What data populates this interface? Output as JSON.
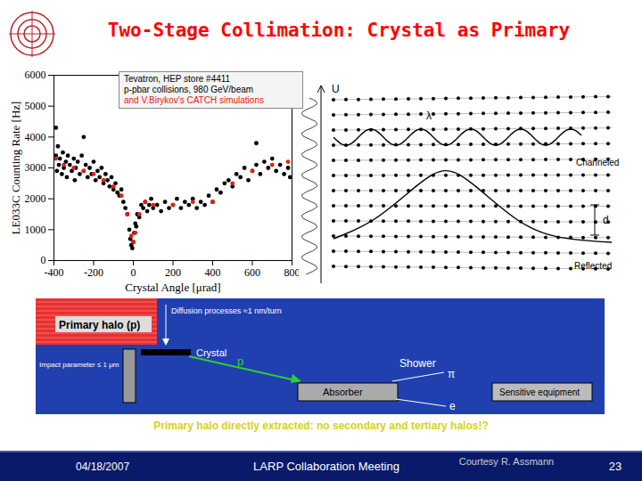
{
  "header": {
    "title": "Two-Stage Collimation: Crystal as Primary"
  },
  "chart_data": {
    "type": "scatter",
    "xlabel": "Crystal Angle [μrad]",
    "ylabel": "LE033C Counting Rate [Hz]",
    "annotations": [
      {
        "text": "Tevatron, HEP store #4411",
        "color": "#000000"
      },
      {
        "text": "p-pbar collisions, 980 GeV/beam",
        "color": "#000000"
      },
      {
        "text": "and V.Birykov's CATCH simulations",
        "color": "#e02010"
      }
    ],
    "series": [
      {
        "color": "#000000",
        "marker": "circle",
        "x": [
          -390,
          -390,
          -385,
          -380,
          -375,
          -370,
          -360,
          -355,
          -350,
          -340,
          -335,
          -330,
          -320,
          -310,
          -300,
          -295,
          -290,
          -280,
          -270,
          -260,
          -250,
          -250,
          -240,
          -230,
          -220,
          -210,
          -200,
          -190,
          -180,
          -170,
          -160,
          -150,
          -140,
          -130,
          -120,
          -110,
          -100,
          -90,
          -80,
          -70,
          -60,
          -50,
          -40,
          -30,
          -20,
          -15,
          -10,
          -5,
          0,
          5,
          10,
          15,
          20,
          30,
          40,
          50,
          60,
          70,
          80,
          90,
          100,
          120,
          140,
          160,
          180,
          200,
          220,
          240,
          260,
          280,
          300,
          320,
          340,
          360,
          380,
          400,
          420,
          440,
          460,
          480,
          500,
          520,
          540,
          560,
          580,
          600,
          620,
          620,
          640,
          660,
          680,
          700,
          720,
          740,
          760,
          780,
          790
        ],
        "y": [
          3400,
          4300,
          2900,
          3700,
          3100,
          3300,
          2800,
          3500,
          3000,
          3200,
          2700,
          3400,
          3100,
          2900,
          3300,
          2600,
          3000,
          3200,
          2800,
          3400,
          2900,
          4000,
          3100,
          2700,
          3000,
          2800,
          3200,
          2600,
          2900,
          2700,
          3000,
          2500,
          2800,
          2600,
          2400,
          2700,
          2300,
          2500,
          2200,
          2100,
          2300,
          1900,
          1700,
          1500,
          1000,
          700,
          500,
          400,
          600,
          900,
          1200,
          1100,
          1500,
          1400,
          1800,
          1700,
          1900,
          1600,
          1800,
          2000,
          1700,
          1800,
          1600,
          1900,
          1700,
          1800,
          2000,
          1700,
          1900,
          1800,
          2000,
          1700,
          1900,
          1800,
          2100,
          1900,
          2300,
          2200,
          2500,
          2600,
          2400,
          2800,
          2700,
          3000,
          2600,
          2900,
          3100,
          3800,
          2800,
          3200,
          3000,
          3300,
          2900,
          3100,
          2800,
          3000,
          2700
        ]
      },
      {
        "color": "#e02010",
        "marker": "circle",
        "x": [
          -390,
          -350,
          -300,
          -250,
          -200,
          -150,
          -100,
          -60,
          -30,
          -10,
          0,
          10,
          30,
          60,
          100,
          200,
          300,
          400,
          500,
          600,
          700,
          780
        ],
        "y": [
          3300,
          3100,
          3000,
          2900,
          2800,
          2600,
          2400,
          2100,
          1500,
          800,
          600,
          900,
          1500,
          1900,
          1800,
          1800,
          1900,
          1900,
          2500,
          2900,
          3100,
          3200
        ]
      }
    ],
    "xlim": [
      -400,
      800
    ],
    "xticks": [
      -400,
      -200,
      0,
      200,
      400,
      600,
      800
    ],
    "ylim": [
      0,
      6000
    ],
    "yticks": [
      0,
      1000,
      2000,
      3000,
      4000,
      5000,
      6000
    ]
  },
  "channeling_diagram": {
    "potential": "U",
    "period": "λ",
    "channeled": "Channeled",
    "spacing": "d",
    "reflected": "Reflected"
  },
  "halo_diagram": {
    "halo": "Primary halo (p)",
    "diffusion": "Diffusion processes ≈1 nm/turn",
    "impact": "Impact parameter ≤ 1 μm",
    "crystal": "Crystal",
    "proton": "p",
    "shower": "Shower",
    "pion": "π",
    "electron": "e",
    "absorber": "Absorber",
    "equipment": "Sensitive equipment",
    "caption": "Primary halo directly extracted: no secondary and tertiary halos!?"
  },
  "footer": {
    "date": "04/18/2007",
    "meeting": "LARP Collaboration Meeting",
    "credit": "Courtesy R. Assmann",
    "page": "23"
  }
}
